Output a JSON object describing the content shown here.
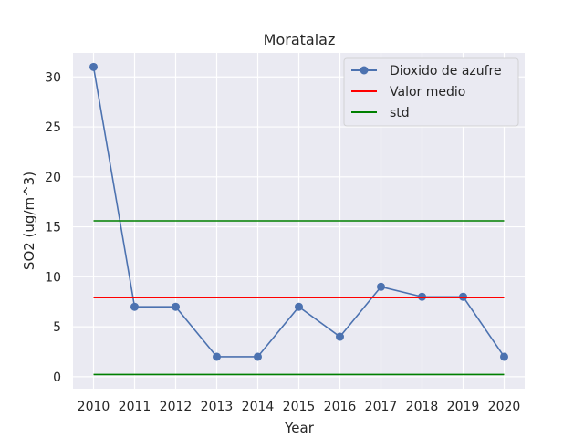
{
  "chart_data": {
    "type": "line",
    "title": "Moratalaz",
    "xlabel": "Year",
    "ylabel": "SO2 (ug/m^3)",
    "x": [
      2010,
      2011,
      2012,
      2013,
      2014,
      2015,
      2016,
      2017,
      2018,
      2019,
      2020
    ],
    "x_tick_labels": [
      "2010",
      "2011",
      "2012",
      "2013",
      "2014",
      "2015",
      "2016",
      "2017",
      "2018",
      "2019",
      "2020"
    ],
    "y_ticks": [
      0,
      5,
      10,
      15,
      20,
      25,
      30
    ],
    "y_tick_labels": [
      "0",
      "5",
      "10",
      "15",
      "20",
      "25",
      "30"
    ],
    "xlim": [
      2009.5,
      2020.5
    ],
    "ylim": [
      -1.2,
      32.4
    ],
    "grid": true,
    "legend_position": "top-right",
    "series": [
      {
        "name": "Dioxido de azufre",
        "values": [
          31,
          7,
          7,
          2,
          2,
          7,
          4,
          9,
          8,
          8,
          2
        ],
        "color": "#4c72b0",
        "marker": "circle"
      },
      {
        "name": "Valor medio",
        "values": [
          7.91,
          7.91,
          7.91,
          7.91,
          7.91,
          7.91,
          7.91,
          7.91,
          7.91,
          7.91,
          7.91
        ],
        "color": "#ff0000"
      },
      {
        "name": "std",
        "values": [
          15.6,
          15.6,
          15.6,
          15.6,
          15.6,
          15.6,
          15.6,
          15.6,
          15.6,
          15.6,
          15.6
        ],
        "color": "#008000"
      },
      {
        "name": "std_lower",
        "legend": false,
        "values": [
          0.22,
          0.22,
          0.22,
          0.22,
          0.22,
          0.22,
          0.22,
          0.22,
          0.22,
          0.22,
          0.22
        ],
        "color": "#008000"
      }
    ],
    "legend": [
      "Dioxido de azufre",
      "Valor medio",
      "std"
    ],
    "colors": {
      "background": "#eaeaf2",
      "grid": "#ffffff",
      "text": "#262626"
    }
  }
}
